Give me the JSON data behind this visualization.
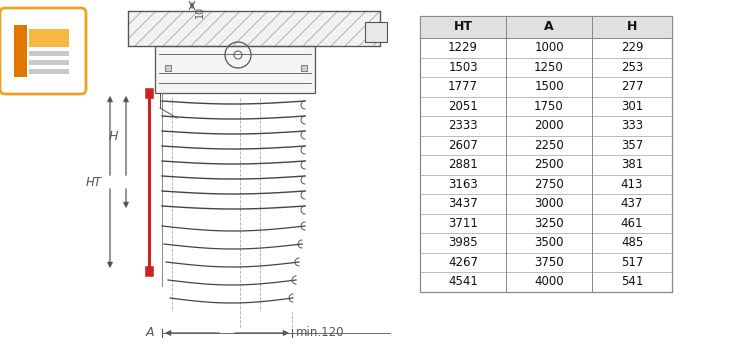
{
  "table_headers": [
    "HT",
    "A",
    "H"
  ],
  "table_data": [
    [
      1229,
      1000,
      229
    ],
    [
      1503,
      1250,
      253
    ],
    [
      1777,
      1500,
      277
    ],
    [
      2051,
      1750,
      301
    ],
    [
      2333,
      2000,
      333
    ],
    [
      2607,
      2250,
      357
    ],
    [
      2881,
      2500,
      381
    ],
    [
      3163,
      2750,
      413
    ],
    [
      3437,
      3000,
      437
    ],
    [
      3711,
      3250,
      461
    ],
    [
      3985,
      3500,
      485
    ],
    [
      4267,
      3750,
      517
    ],
    [
      4541,
      4000,
      541
    ]
  ],
  "bg_color": "#ffffff",
  "table_header_bg": "#e0e0e0",
  "table_border_color": "#888888",
  "icon_bg": "#ffffff",
  "icon_border": "#f0a020",
  "icon_col_color": "#e07800",
  "icon_rect_color": "#f5b840",
  "icon_line_color": "#cccccc",
  "drawing_line_color": "#555555",
  "red_accent": "#cc2222",
  "hatch_color": "#aaaaaa",
  "min120_text": "min.120",
  "label_10": "10",
  "label_H": "H",
  "label_HT": "HT",
  "label_A": "A"
}
